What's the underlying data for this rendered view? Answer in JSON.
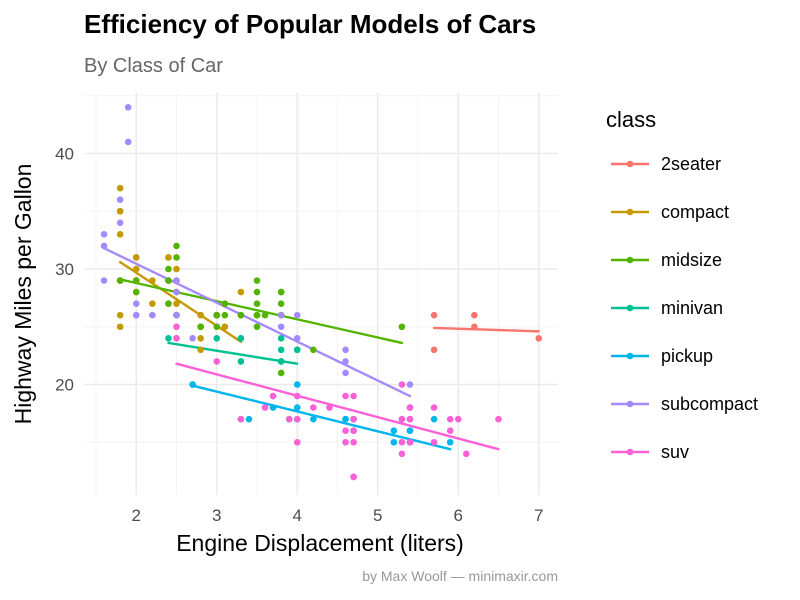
{
  "chart_data": {
    "type": "scatter",
    "title": "Efficiency of Popular Models of Cars",
    "subtitle": "By Class of Car",
    "xlabel": "Engine Displacement (liters)",
    "ylabel": "Highway Miles per Gallon",
    "caption": "by Max Woolf — minimaxir.com",
    "xlim": [
      1.5,
      7.0
    ],
    "ylim": [
      11.5,
      44.8
    ],
    "xticks": [
      2,
      3,
      4,
      5,
      6,
      7
    ],
    "yticks": [
      20,
      30,
      40
    ],
    "grid": true,
    "legend": {
      "title": "class",
      "position": "right"
    },
    "series": [
      {
        "name": "2seater",
        "color": "#F8766D",
        "points": [
          [
            5.7,
            26
          ],
          [
            5.7,
            23
          ],
          [
            6.2,
            26
          ],
          [
            6.2,
            25
          ],
          [
            7.0,
            24
          ]
        ],
        "trend": [
          [
            5.7,
            24.9
          ],
          [
            7.0,
            24.6
          ]
        ]
      },
      {
        "name": "compact",
        "color": "#C49A00",
        "points": [
          [
            1.8,
            29
          ],
          [
            1.8,
            29
          ],
          [
            2.0,
            31
          ],
          [
            2.0,
            30
          ],
          [
            2.8,
            26
          ],
          [
            2.8,
            26
          ],
          [
            3.1,
            27
          ],
          [
            1.8,
            26
          ],
          [
            1.8,
            25
          ],
          [
            2.0,
            28
          ],
          [
            2.0,
            29
          ],
          [
            2.8,
            25
          ],
          [
            2.8,
            25
          ],
          [
            3.1,
            25
          ],
          [
            2.2,
            27
          ],
          [
            2.2,
            29
          ],
          [
            2.4,
            31
          ],
          [
            2.4,
            31
          ],
          [
            3.0,
            26
          ],
          [
            3.0,
            26
          ],
          [
            3.3,
            28
          ],
          [
            1.8,
            37
          ],
          [
            1.8,
            35
          ],
          [
            1.8,
            29
          ],
          [
            2.0,
            29
          ],
          [
            2.0,
            29
          ],
          [
            2.5,
            28
          ],
          [
            2.5,
            29
          ],
          [
            2.8,
            23
          ],
          [
            1.8,
            33
          ],
          [
            1.8,
            35
          ],
          [
            2.0,
            29
          ],
          [
            2.0,
            31
          ],
          [
            2.8,
            24
          ],
          [
            2.5,
            27
          ],
          [
            2.5,
            30
          ]
        ],
        "trend": [
          [
            1.8,
            30.6
          ],
          [
            3.3,
            23.7
          ]
        ]
      },
      {
        "name": "midsize",
        "color": "#53B400",
        "points": [
          [
            2.4,
            27
          ],
          [
            2.4,
            30
          ],
          [
            2.5,
            32
          ],
          [
            2.5,
            31
          ],
          [
            3.3,
            26
          ],
          [
            3.3,
            26
          ],
          [
            3.5,
            27
          ],
          [
            3.8,
            28
          ],
          [
            3.8,
            26
          ],
          [
            3.8,
            26
          ],
          [
            5.3,
            25
          ],
          [
            2.5,
            26
          ],
          [
            2.5,
            26
          ],
          [
            3.0,
            26
          ],
          [
            3.0,
            26
          ],
          [
            3.5,
            26
          ],
          [
            3.5,
            26
          ],
          [
            3.5,
            29
          ],
          [
            3.5,
            28
          ],
          [
            3.8,
            28
          ],
          [
            3.8,
            27
          ],
          [
            4.2,
            23
          ],
          [
            2.4,
            29
          ],
          [
            2.4,
            27
          ],
          [
            3.1,
            26
          ],
          [
            3.1,
            27
          ],
          [
            3.5,
            25
          ],
          [
            3.6,
            26
          ],
          [
            3.8,
            22
          ],
          [
            3.8,
            21
          ],
          [
            1.8,
            29
          ],
          [
            2.0,
            29
          ],
          [
            2.0,
            28
          ],
          [
            2.4,
            29
          ],
          [
            2.5,
            26
          ],
          [
            2.8,
            25
          ],
          [
            3.0,
            25
          ],
          [
            3.5,
            26
          ],
          [
            4.0,
            23
          ]
        ],
        "trend": [
          [
            1.8,
            29.1
          ],
          [
            5.3,
            23.6
          ]
        ]
      },
      {
        "name": "minivan",
        "color": "#00C094",
        "points": [
          [
            2.4,
            24
          ],
          [
            3.0,
            24
          ],
          [
            3.3,
            22
          ],
          [
            3.3,
            24
          ],
          [
            3.3,
            24
          ],
          [
            3.8,
            22
          ],
          [
            3.8,
            22
          ],
          [
            3.8,
            23
          ],
          [
            4.0,
            23
          ],
          [
            3.3,
            17
          ],
          [
            3.8,
            24
          ]
        ],
        "trend": [
          [
            2.4,
            23.6
          ],
          [
            4.0,
            21.8
          ]
        ]
      },
      {
        "name": "pickup",
        "color": "#00B6EB",
        "points": [
          [
            2.7,
            20
          ],
          [
            2.7,
            20
          ],
          [
            3.4,
            17
          ],
          [
            3.7,
            18
          ],
          [
            3.7,
            19
          ],
          [
            3.9,
            17
          ],
          [
            3.9,
            17
          ],
          [
            4.0,
            17
          ],
          [
            4.0,
            18
          ],
          [
            4.0,
            20
          ],
          [
            4.2,
            17
          ],
          [
            4.6,
            17
          ],
          [
            4.6,
            17
          ],
          [
            4.7,
            17
          ],
          [
            4.7,
            16
          ],
          [
            4.7,
            17
          ],
          [
            5.2,
            15
          ],
          [
            5.2,
            16
          ],
          [
            5.3,
            17
          ],
          [
            5.4,
            16
          ],
          [
            5.4,
            16
          ],
          [
            5.4,
            15
          ],
          [
            5.7,
            17
          ],
          [
            5.9,
            15
          ],
          [
            4.7,
            16
          ]
        ],
        "trend": [
          [
            2.7,
            19.9
          ],
          [
            5.9,
            14.4
          ]
        ]
      },
      {
        "name": "subcompact",
        "color": "#A58AFF",
        "points": [
          [
            1.6,
            33
          ],
          [
            1.6,
            32
          ],
          [
            1.6,
            29
          ],
          [
            1.9,
            44
          ],
          [
            1.9,
            41
          ],
          [
            2.0,
            27
          ],
          [
            2.0,
            26
          ],
          [
            2.5,
            26
          ],
          [
            2.5,
            24
          ],
          [
            3.8,
            26
          ],
          [
            3.8,
            25
          ],
          [
            4.0,
            26
          ],
          [
            4.0,
            24
          ],
          [
            4.6,
            21
          ],
          [
            4.6,
            22
          ],
          [
            4.6,
            23
          ],
          [
            5.4,
            20
          ],
          [
            1.8,
            36
          ],
          [
            1.8,
            34
          ],
          [
            2.0,
            26
          ],
          [
            2.2,
            26
          ],
          [
            2.5,
            29
          ],
          [
            2.5,
            28
          ],
          [
            2.7,
            24
          ]
        ],
        "trend": [
          [
            1.6,
            31.8
          ],
          [
            5.4,
            19.0
          ]
        ]
      },
      {
        "name": "suv",
        "color": "#FB61D7",
        "points": [
          [
            2.5,
            25
          ],
          [
            2.5,
            24
          ],
          [
            3.0,
            22
          ],
          [
            3.3,
            17
          ],
          [
            3.7,
            19
          ],
          [
            4.0,
            19
          ],
          [
            4.0,
            15
          ],
          [
            4.0,
            17
          ],
          [
            4.6,
            19
          ],
          [
            4.6,
            16
          ],
          [
            4.6,
            15
          ],
          [
            4.7,
            12
          ],
          [
            4.7,
            12
          ],
          [
            4.7,
            16
          ],
          [
            4.7,
            19
          ],
          [
            5.3,
            17
          ],
          [
            5.3,
            20
          ],
          [
            5.4,
            17
          ],
          [
            5.4,
            15
          ],
          [
            5.4,
            17
          ],
          [
            5.4,
            18
          ],
          [
            5.7,
            18
          ],
          [
            5.9,
            17
          ],
          [
            5.9,
            16
          ],
          [
            6.0,
            17
          ],
          [
            6.1,
            14
          ],
          [
            6.5,
            17
          ],
          [
            4.4,
            18
          ],
          [
            4.2,
            18
          ],
          [
            3.9,
            17
          ],
          [
            4.7,
            17
          ],
          [
            4.7,
            15
          ],
          [
            5.3,
            15
          ],
          [
            5.7,
            15
          ],
          [
            3.6,
            18
          ],
          [
            5.3,
            14
          ],
          [
            5.4,
            18
          ]
        ],
        "trend": [
          [
            2.5,
            21.8
          ],
          [
            6.5,
            14.4
          ]
        ]
      }
    ]
  }
}
